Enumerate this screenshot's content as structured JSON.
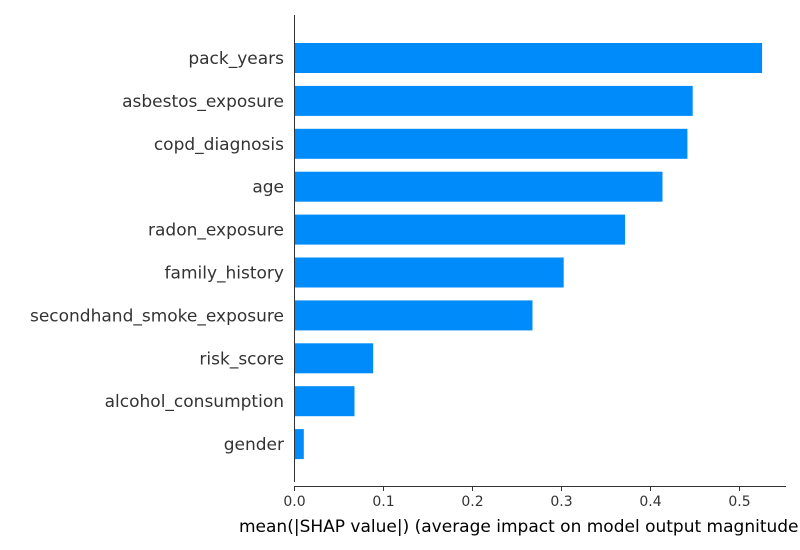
{
  "chart_data": {
    "type": "bar",
    "orientation": "horizontal",
    "categories": [
      "pack_years",
      "asbestos_exposure",
      "copd_diagnosis",
      "age",
      "radon_exposure",
      "family_history",
      "secondhand_smoke_exposure",
      "risk_score",
      "alcohol_consumption",
      "gender"
    ],
    "values": [
      0.526,
      0.448,
      0.442,
      0.414,
      0.372,
      0.303,
      0.268,
      0.089,
      0.068,
      0.011
    ],
    "xlabel": "mean(|SHAP value|) (average impact on model output magnitude)",
    "ylabel": "",
    "title": "",
    "xlim": [
      0,
      0.55
    ],
    "xticks": [
      "0.0",
      "0.1",
      "0.2",
      "0.3",
      "0.4",
      "0.5"
    ],
    "xtick_values": [
      0,
      0.1,
      0.2,
      0.3,
      0.4,
      0.5
    ],
    "bar_color": "#008bfb",
    "axis_color": "#333333",
    "grid": false,
    "legend": "none"
  }
}
